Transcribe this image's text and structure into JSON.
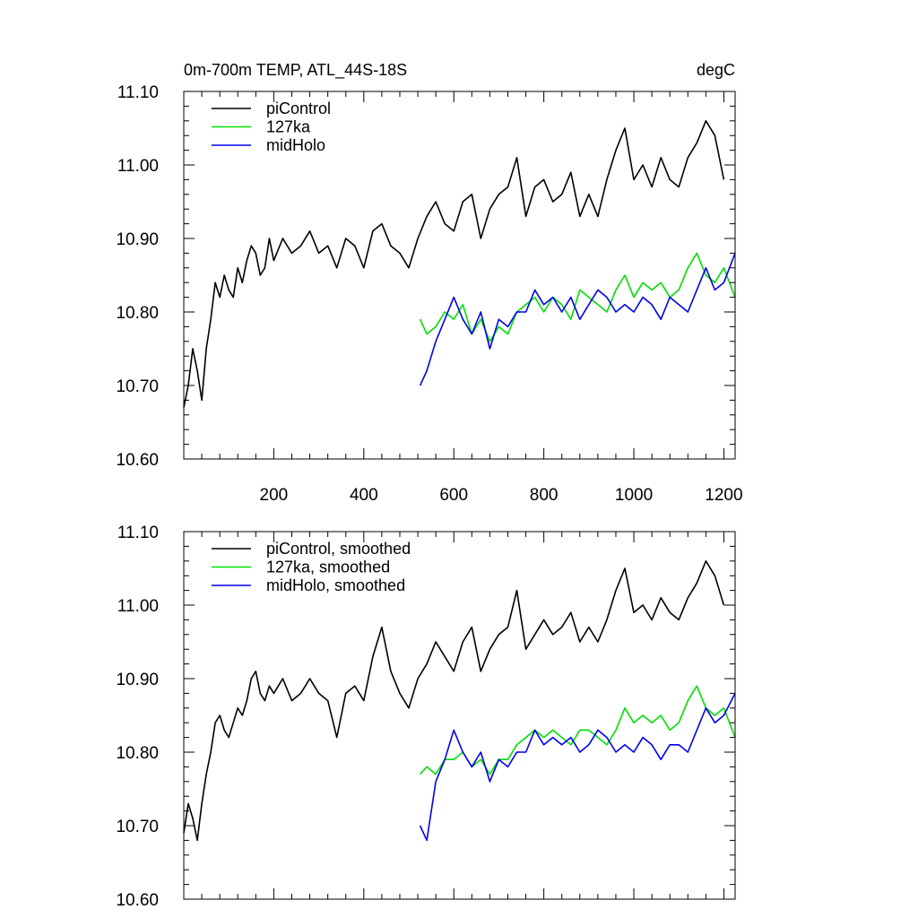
{
  "chart_data": [
    {
      "type": "line",
      "title_left": "0m-700m TEMP, ATL_44S-18S",
      "title_right": "degC",
      "xlim": [
        0,
        1225
      ],
      "ylim": [
        10.6,
        11.1
      ],
      "xticks": [
        200,
        400,
        600,
        800,
        1000,
        1200
      ],
      "xtick_labels": [
        "200",
        "400",
        "600",
        "800",
        "1000",
        "1200"
      ],
      "yticks": [
        10.6,
        10.7,
        10.8,
        10.9,
        11.0,
        11.1
      ],
      "ytick_labels": [
        "10.60",
        "10.70",
        "10.80",
        "10.90",
        "11.00",
        "11.10"
      ],
      "legend_position": "top-left",
      "series": [
        {
          "name": "piControl",
          "color": "#000000",
          "x": [
            0,
            10,
            20,
            30,
            40,
            50,
            60,
            70,
            80,
            90,
            100,
            110,
            120,
            130,
            140,
            150,
            160,
            170,
            180,
            190,
            200,
            220,
            240,
            260,
            280,
            300,
            320,
            340,
            360,
            380,
            400,
            420,
            440,
            460,
            480,
            500,
            520,
            540,
            560,
            580,
            600,
            620,
            640,
            660,
            680,
            700,
            720,
            740,
            760,
            780,
            800,
            820,
            840,
            860,
            880,
            900,
            920,
            940,
            960,
            980,
            1000,
            1020,
            1040,
            1060,
            1080,
            1100,
            1120,
            1140,
            1160,
            1180,
            1200
          ],
          "y": [
            10.67,
            10.7,
            10.75,
            10.72,
            10.68,
            10.75,
            10.79,
            10.84,
            10.82,
            10.85,
            10.83,
            10.82,
            10.86,
            10.84,
            10.87,
            10.89,
            10.88,
            10.85,
            10.86,
            10.9,
            10.87,
            10.9,
            10.88,
            10.89,
            10.91,
            10.88,
            10.89,
            10.86,
            10.9,
            10.89,
            10.86,
            10.91,
            10.92,
            10.89,
            10.88,
            10.86,
            10.9,
            10.93,
            10.95,
            10.92,
            10.91,
            10.95,
            10.96,
            10.9,
            10.94,
            10.96,
            10.97,
            11.01,
            10.93,
            10.97,
            10.98,
            10.95,
            10.96,
            10.99,
            10.93,
            10.96,
            10.93,
            10.98,
            11.02,
            11.05,
            10.98,
            11.0,
            10.97,
            11.01,
            10.98,
            10.97,
            11.01,
            11.03,
            11.06,
            11.04,
            10.98
          ]
        },
        {
          "name": "127ka",
          "color": "#00e000",
          "x": [
            525,
            540,
            560,
            580,
            600,
            620,
            640,
            660,
            680,
            700,
            720,
            740,
            760,
            780,
            800,
            820,
            840,
            860,
            880,
            900,
            920,
            940,
            960,
            980,
            1000,
            1020,
            1040,
            1060,
            1080,
            1100,
            1120,
            1140,
            1160,
            1180,
            1200,
            1225
          ],
          "y": [
            10.79,
            10.77,
            10.78,
            10.8,
            10.79,
            10.81,
            10.77,
            10.79,
            10.76,
            10.78,
            10.77,
            10.8,
            10.81,
            10.82,
            10.8,
            10.82,
            10.81,
            10.79,
            10.83,
            10.82,
            10.81,
            10.8,
            10.83,
            10.85,
            10.82,
            10.84,
            10.83,
            10.84,
            10.82,
            10.83,
            10.86,
            10.88,
            10.85,
            10.84,
            10.86,
            10.82
          ]
        },
        {
          "name": "midHolo",
          "color": "#0000ee",
          "x": [
            525,
            540,
            560,
            580,
            600,
            620,
            640,
            660,
            680,
            700,
            720,
            740,
            760,
            780,
            800,
            820,
            840,
            860,
            880,
            900,
            920,
            940,
            960,
            980,
            1000,
            1020,
            1040,
            1060,
            1080,
            1100,
            1120,
            1140,
            1160,
            1180,
            1200,
            1225
          ],
          "y": [
            10.7,
            10.72,
            10.76,
            10.79,
            10.82,
            10.79,
            10.77,
            10.8,
            10.75,
            10.79,
            10.78,
            10.8,
            10.8,
            10.83,
            10.81,
            10.82,
            10.8,
            10.82,
            10.79,
            10.81,
            10.83,
            10.82,
            10.8,
            10.81,
            10.8,
            10.82,
            10.81,
            10.79,
            10.82,
            10.81,
            10.8,
            10.83,
            10.86,
            10.83,
            10.84,
            10.88
          ]
        }
      ]
    },
    {
      "type": "line",
      "xlim": [
        0,
        1225
      ],
      "ylim": [
        10.6,
        11.1
      ],
      "xticks": [
        200,
        400,
        600,
        800,
        1000,
        1200
      ],
      "yticks": [
        10.6,
        10.7,
        10.8,
        10.9,
        11.0,
        11.1
      ],
      "ytick_labels": [
        "10.60",
        "10.70",
        "10.80",
        "10.90",
        "11.00",
        "11.10"
      ],
      "legend_position": "top-left",
      "series": [
        {
          "name": "piControl, smoothed",
          "color": "#000000",
          "x": [
            0,
            10,
            20,
            30,
            40,
            50,
            60,
            70,
            80,
            90,
            100,
            110,
            120,
            130,
            140,
            150,
            160,
            170,
            180,
            190,
            200,
            220,
            240,
            260,
            280,
            300,
            320,
            340,
            360,
            380,
            400,
            420,
            440,
            460,
            480,
            500,
            520,
            540,
            560,
            580,
            600,
            620,
            640,
            660,
            680,
            700,
            720,
            740,
            760,
            780,
            800,
            820,
            840,
            860,
            880,
            900,
            920,
            940,
            960,
            980,
            1000,
            1020,
            1040,
            1060,
            1080,
            1100,
            1120,
            1140,
            1160,
            1180,
            1200
          ],
          "y": [
            10.69,
            10.73,
            10.71,
            10.68,
            10.73,
            10.77,
            10.8,
            10.84,
            10.85,
            10.83,
            10.82,
            10.84,
            10.86,
            10.85,
            10.87,
            10.9,
            10.91,
            10.88,
            10.87,
            10.89,
            10.88,
            10.9,
            10.87,
            10.88,
            10.9,
            10.88,
            10.87,
            10.82,
            10.88,
            10.89,
            10.87,
            10.93,
            10.97,
            10.91,
            10.88,
            10.86,
            10.9,
            10.92,
            10.95,
            10.93,
            10.91,
            10.95,
            10.97,
            10.91,
            10.94,
            10.96,
            10.97,
            11.02,
            10.94,
            10.96,
            10.98,
            10.96,
            10.97,
            10.99,
            10.95,
            10.97,
            10.95,
            10.98,
            11.02,
            11.05,
            10.99,
            11.0,
            10.98,
            11.01,
            10.99,
            10.98,
            11.01,
            11.03,
            11.06,
            11.04,
            11.0
          ]
        },
        {
          "name": "127ka, smoothed",
          "color": "#00e000",
          "x": [
            525,
            540,
            560,
            580,
            600,
            620,
            640,
            660,
            680,
            700,
            720,
            740,
            760,
            780,
            800,
            820,
            840,
            860,
            880,
            900,
            920,
            940,
            960,
            980,
            1000,
            1020,
            1040,
            1060,
            1080,
            1100,
            1120,
            1140,
            1160,
            1180,
            1200,
            1225
          ],
          "y": [
            10.77,
            10.78,
            10.77,
            10.79,
            10.79,
            10.8,
            10.78,
            10.79,
            10.77,
            10.79,
            10.79,
            10.81,
            10.82,
            10.83,
            10.82,
            10.83,
            10.82,
            10.81,
            10.83,
            10.83,
            10.82,
            10.81,
            10.83,
            10.86,
            10.84,
            10.85,
            10.84,
            10.85,
            10.83,
            10.84,
            10.87,
            10.89,
            10.86,
            10.85,
            10.86,
            10.82
          ]
        },
        {
          "name": "midHolo, smoothed",
          "color": "#0000ee",
          "x": [
            525,
            540,
            560,
            580,
            600,
            620,
            640,
            660,
            680,
            700,
            720,
            740,
            760,
            780,
            800,
            820,
            840,
            860,
            880,
            900,
            920,
            940,
            960,
            980,
            1000,
            1020,
            1040,
            1060,
            1080,
            1100,
            1120,
            1140,
            1160,
            1180,
            1200,
            1225
          ],
          "y": [
            10.7,
            10.68,
            10.76,
            10.79,
            10.83,
            10.8,
            10.78,
            10.8,
            10.76,
            10.79,
            10.78,
            10.8,
            10.8,
            10.83,
            10.81,
            10.82,
            10.81,
            10.82,
            10.8,
            10.81,
            10.83,
            10.82,
            10.8,
            10.81,
            10.8,
            10.82,
            10.81,
            10.79,
            10.81,
            10.81,
            10.8,
            10.83,
            10.86,
            10.84,
            10.85,
            10.88
          ]
        }
      ]
    }
  ]
}
